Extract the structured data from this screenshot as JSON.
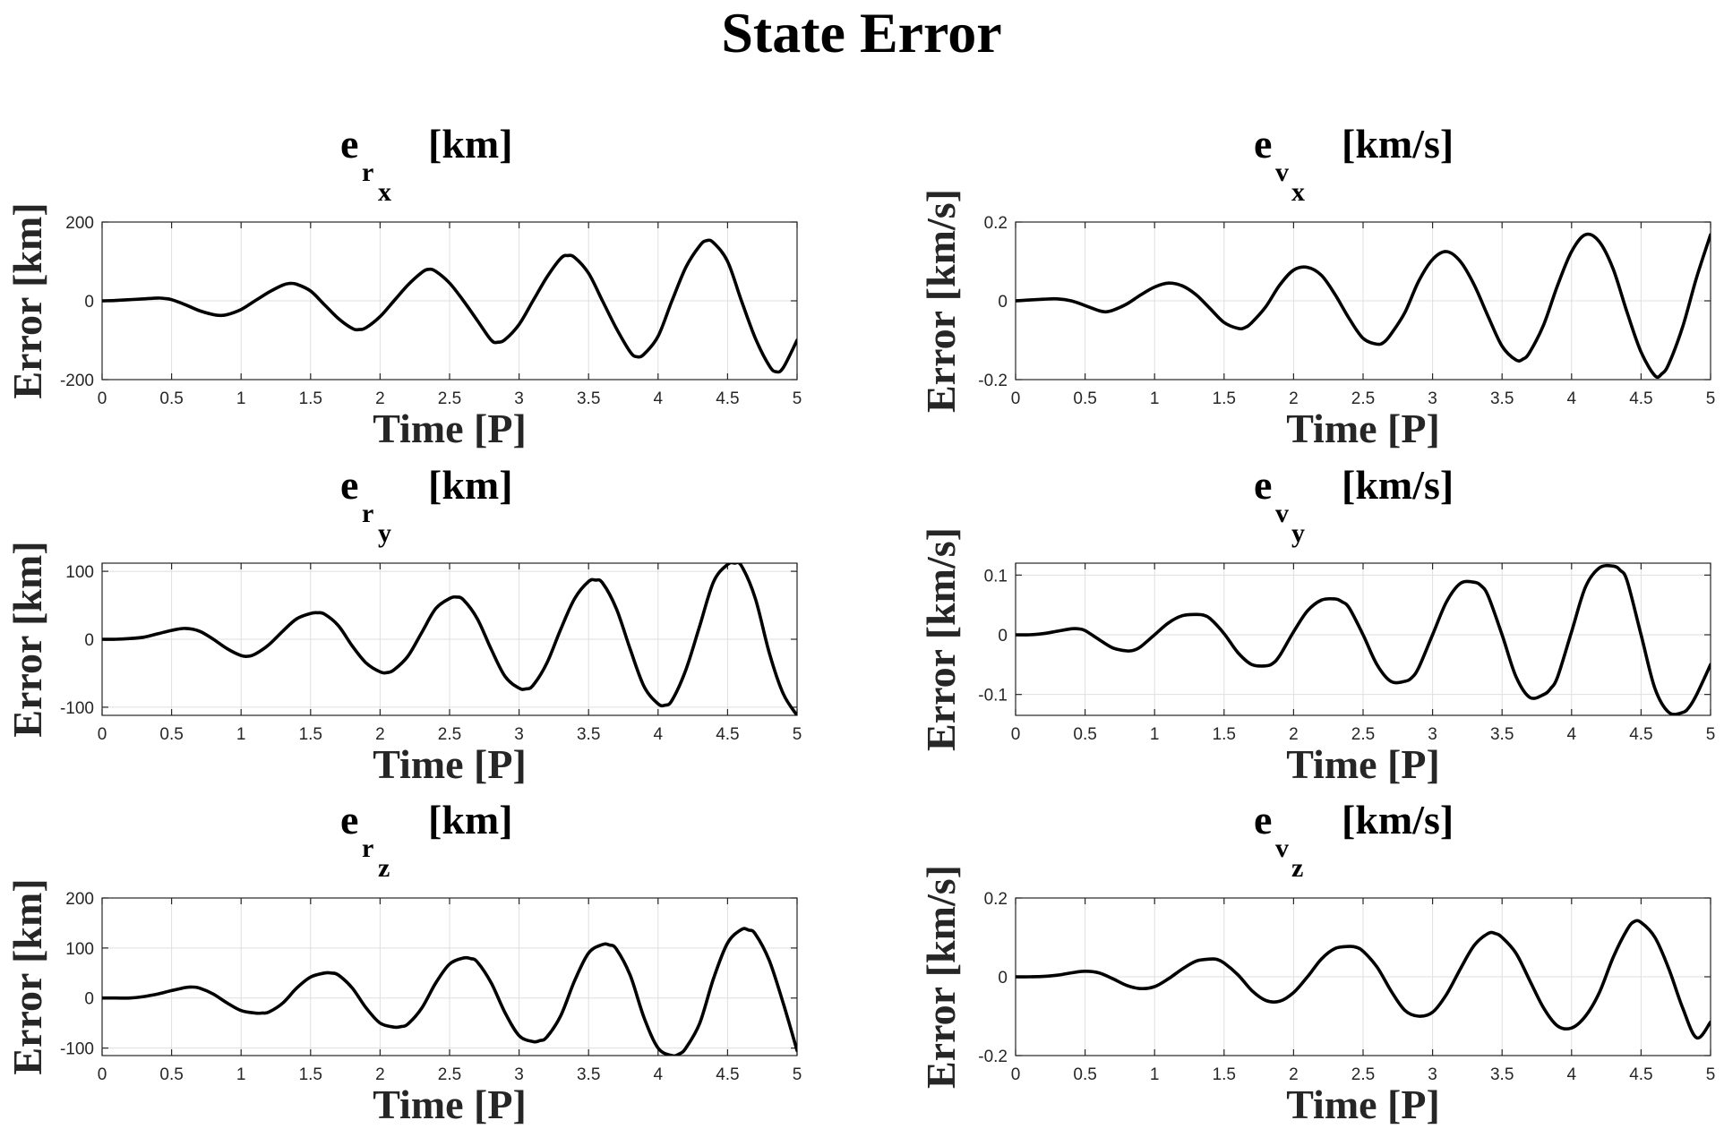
{
  "figure": {
    "title": "State Error"
  },
  "chart_data": [
    {
      "type": "line",
      "title": {
        "base": "e",
        "sub": "r",
        "subsub": "x",
        "unit": "[km]"
      },
      "xlabel": "Time [P]",
      "ylabel": "Error [km]",
      "xlim": [
        0,
        5
      ],
      "ylim": [
        -200,
        200
      ],
      "xticks": [
        0,
        0.5,
        1,
        1.5,
        2,
        2.5,
        3,
        3.5,
        4,
        4.5,
        5
      ],
      "xticklabels": [
        "0",
        "0.5",
        "1",
        "1.5",
        "2",
        "2.5",
        "3",
        "3.5",
        "4",
        "4.5",
        "5"
      ],
      "yticks": [
        -200,
        0,
        200
      ],
      "yticklabels": [
        "-200",
        "0",
        "200"
      ],
      "grid": true,
      "series": [
        {
          "color": "#000000",
          "x": [
            0,
            0.1,
            0.2,
            0.3,
            0.4,
            0.45,
            0.5,
            0.6,
            0.7,
            0.8,
            0.85,
            0.9,
            1.0,
            1.1,
            1.2,
            1.3,
            1.35,
            1.4,
            1.5,
            1.6,
            1.7,
            1.8,
            1.85,
            1.9,
            2.0,
            2.1,
            2.2,
            2.3,
            2.35,
            2.4,
            2.5,
            2.6,
            2.7,
            2.8,
            2.85,
            2.9,
            3.0,
            3.1,
            3.2,
            3.3,
            3.35,
            3.4,
            3.5,
            3.6,
            3.7,
            3.8,
            3.85,
            3.9,
            4.0,
            4.1,
            4.2,
            4.3,
            4.35,
            4.4,
            4.5,
            4.6,
            4.7,
            4.8,
            4.85,
            4.9,
            5.0
          ],
          "y": [
            0,
            1,
            3,
            5,
            7,
            6,
            3,
            -10,
            -25,
            -35,
            -37,
            -35,
            -22,
            0,
            22,
            40,
            44,
            42,
            25,
            -10,
            -45,
            -70,
            -73,
            -68,
            -40,
            0,
            40,
            72,
            80,
            75,
            45,
            0,
            -50,
            -100,
            -105,
            -98,
            -60,
            0,
            60,
            108,
            115,
            110,
            70,
            0,
            -70,
            -130,
            -142,
            -135,
            -90,
            0,
            85,
            140,
            153,
            147,
            100,
            0,
            -95,
            -165,
            -180,
            -170,
            -100
          ]
        }
      ]
    },
    {
      "type": "line",
      "title": {
        "base": "e",
        "sub": "v",
        "subsub": "x",
        "unit": "[km/s]"
      },
      "xlabel": "Time [P]",
      "ylabel": "Error [km/s]",
      "xlim": [
        0,
        5
      ],
      "ylim": [
        -0.2,
        0.2
      ],
      "xticks": [
        0,
        0.5,
        1,
        1.5,
        2,
        2.5,
        3,
        3.5,
        4,
        4.5,
        5
      ],
      "xticklabels": [
        "0",
        "0.5",
        "1",
        "1.5",
        "2",
        "2.5",
        "3",
        "3.5",
        "4",
        "4.5",
        "5"
      ],
      "yticks": [
        -0.2,
        0,
        0.2
      ],
      "yticklabels": [
        "-0.2",
        "0",
        "0.2"
      ],
      "grid": true,
      "series": [
        {
          "color": "#000000",
          "x": [
            0,
            0.1,
            0.2,
            0.3,
            0.4,
            0.5,
            0.6,
            0.65,
            0.7,
            0.8,
            0.9,
            1.0,
            1.1,
            1.2,
            1.3,
            1.4,
            1.5,
            1.6,
            1.65,
            1.7,
            1.8,
            1.9,
            2.0,
            2.1,
            2.2,
            2.3,
            2.4,
            2.5,
            2.6,
            2.65,
            2.7,
            2.8,
            2.9,
            3.0,
            3.1,
            3.2,
            3.3,
            3.4,
            3.5,
            3.6,
            3.65,
            3.7,
            3.8,
            3.9,
            4.0,
            4.1,
            4.2,
            4.3,
            4.4,
            4.5,
            4.6,
            4.65,
            4.7,
            4.8,
            4.9,
            5.0
          ],
          "y": [
            0,
            0.002,
            0.004,
            0.005,
            0.0,
            -0.012,
            -0.025,
            -0.028,
            -0.024,
            -0.008,
            0.015,
            0.035,
            0.045,
            0.038,
            0.015,
            -0.02,
            -0.055,
            -0.07,
            -0.068,
            -0.055,
            -0.015,
            0.04,
            0.078,
            0.085,
            0.065,
            0.015,
            -0.045,
            -0.095,
            -0.11,
            -0.105,
            -0.085,
            -0.03,
            0.05,
            0.105,
            0.125,
            0.1,
            0.04,
            -0.04,
            -0.115,
            -0.15,
            -0.148,
            -0.13,
            -0.06,
            0.04,
            0.125,
            0.168,
            0.15,
            0.08,
            -0.03,
            -0.13,
            -0.19,
            -0.185,
            -0.16,
            -0.065,
            0.06,
            0.168
          ]
        }
      ]
    },
    {
      "type": "line",
      "title": {
        "base": "e",
        "sub": "r",
        "subsub": "y",
        "unit": "[km]"
      },
      "xlabel": "Time [P]",
      "ylabel": "Error [km]",
      "xlim": [
        0,
        5
      ],
      "ylim": [
        -112,
        112
      ],
      "xticks": [
        0,
        0.5,
        1,
        1.5,
        2,
        2.5,
        3,
        3.5,
        4,
        4.5,
        5
      ],
      "xticklabels": [
        "0",
        "0.5",
        "1",
        "1.5",
        "2",
        "2.5",
        "3",
        "3.5",
        "4",
        "4.5",
        "5"
      ],
      "yticks": [
        -100,
        0,
        100
      ],
      "yticklabels": [
        "-100",
        "0",
        "100"
      ],
      "grid": true,
      "series": [
        {
          "color": "#000000",
          "x": [
            0,
            0.1,
            0.2,
            0.3,
            0.4,
            0.5,
            0.6,
            0.7,
            0.8,
            0.9,
            1.0,
            1.05,
            1.1,
            1.2,
            1.3,
            1.4,
            1.5,
            1.55,
            1.6,
            1.7,
            1.8,
            1.9,
            2.0,
            2.05,
            2.1,
            2.2,
            2.3,
            2.4,
            2.5,
            2.55,
            2.6,
            2.7,
            2.8,
            2.9,
            3.0,
            3.05,
            3.1,
            3.2,
            3.3,
            3.4,
            3.5,
            3.55,
            3.6,
            3.7,
            3.8,
            3.9,
            4.0,
            4.05,
            4.1,
            4.2,
            4.3,
            4.4,
            4.5,
            4.55,
            4.6,
            4.7,
            4.8,
            4.9,
            5.0
          ],
          "y": [
            0,
            0,
            1,
            3,
            8,
            13,
            16,
            12,
            0,
            -14,
            -24,
            -25,
            -22,
            -8,
            12,
            30,
            38,
            39,
            37,
            20,
            -10,
            -35,
            -48,
            -49,
            -45,
            -25,
            10,
            45,
            60,
            62,
            58,
            30,
            -15,
            -55,
            -72,
            -73,
            -68,
            -35,
            15,
            60,
            85,
            87,
            83,
            45,
            -15,
            -70,
            -95,
            -97,
            -90,
            -45,
            20,
            85,
            110,
            112,
            108,
            60,
            -20,
            -80,
            -112
          ]
        }
      ]
    },
    {
      "type": "line",
      "title": {
        "base": "e",
        "sub": "v",
        "subsub": "y",
        "unit": "[km/s]"
      },
      "xlabel": "Time [P]",
      "ylabel": "Error [km/s]",
      "xlim": [
        0,
        5
      ],
      "ylim": [
        -0.135,
        0.12
      ],
      "xticks": [
        0,
        0.5,
        1,
        1.5,
        2,
        2.5,
        3,
        3.5,
        4,
        4.5,
        5
      ],
      "xticklabels": [
        "0",
        "0.5",
        "1",
        "1.5",
        "2",
        "2.5",
        "3",
        "3.5",
        "4",
        "4.5",
        "5"
      ],
      "yticks": [
        -0.1,
        0,
        0.1
      ],
      "yticklabels": [
        "-0.1",
        "0",
        "0.1"
      ],
      "grid": true,
      "series": [
        {
          "color": "#000000",
          "x": [
            0,
            0.1,
            0.2,
            0.3,
            0.4,
            0.45,
            0.5,
            0.6,
            0.7,
            0.8,
            0.85,
            0.9,
            1.0,
            1.1,
            1.2,
            1.3,
            1.35,
            1.4,
            1.5,
            1.6,
            1.7,
            1.8,
            1.85,
            1.9,
            2.0,
            2.1,
            2.2,
            2.3,
            2.35,
            2.4,
            2.5,
            2.6,
            2.7,
            2.8,
            2.85,
            2.9,
            3.0,
            3.1,
            3.2,
            3.3,
            3.35,
            3.4,
            3.5,
            3.6,
            3.7,
            3.8,
            3.85,
            3.9,
            4.0,
            4.1,
            4.2,
            4.3,
            4.35,
            4.4,
            4.5,
            4.6,
            4.7,
            4.8,
            4.85,
            4.9,
            5.0
          ],
          "y": [
            0,
            0,
            0.002,
            0.006,
            0.01,
            0.01,
            0.007,
            -0.008,
            -0.022,
            -0.027,
            -0.026,
            -0.02,
            0.0,
            0.02,
            0.032,
            0.034,
            0.033,
            0.027,
            0.002,
            -0.03,
            -0.05,
            -0.052,
            -0.048,
            -0.035,
            0.005,
            0.04,
            0.058,
            0.06,
            0.055,
            0.045,
            0.0,
            -0.05,
            -0.078,
            -0.078,
            -0.072,
            -0.055,
            0.0,
            0.055,
            0.086,
            0.088,
            0.082,
            0.065,
            0.0,
            -0.07,
            -0.105,
            -0.1,
            -0.09,
            -0.07,
            0.005,
            0.08,
            0.112,
            0.115,
            0.108,
            0.09,
            0.0,
            -0.09,
            -0.13,
            -0.13,
            -0.12,
            -0.1,
            -0.05
          ]
        }
      ]
    },
    {
      "type": "line",
      "title": {
        "base": "e",
        "sub": "r",
        "subsub": "z",
        "unit": "[km]"
      },
      "xlabel": "Time [P]",
      "ylabel": "Error [km]",
      "xlim": [
        0,
        5
      ],
      "ylim": [
        -115,
        200
      ],
      "xticks": [
        0,
        0.5,
        1,
        1.5,
        2,
        2.5,
        3,
        3.5,
        4,
        4.5,
        5
      ],
      "xticklabels": [
        "0",
        "0.5",
        "1",
        "1.5",
        "2",
        "2.5",
        "3",
        "3.5",
        "4",
        "4.5",
        "5"
      ],
      "yticks": [
        -100,
        0,
        100,
        200
      ],
      "yticklabels": [
        "-100",
        "0",
        "100",
        "200"
      ],
      "grid": true,
      "series": [
        {
          "color": "#000000",
          "x": [
            0,
            0.1,
            0.2,
            0.3,
            0.4,
            0.5,
            0.6,
            0.65,
            0.7,
            0.8,
            0.9,
            1.0,
            1.1,
            1.15,
            1.2,
            1.3,
            1.4,
            1.5,
            1.6,
            1.65,
            1.7,
            1.8,
            1.9,
            2.0,
            2.1,
            2.15,
            2.2,
            2.3,
            2.4,
            2.5,
            2.6,
            2.65,
            2.7,
            2.8,
            2.9,
            3.0,
            3.1,
            3.15,
            3.2,
            3.3,
            3.4,
            3.5,
            3.6,
            3.65,
            3.7,
            3.8,
            3.9,
            4.0,
            4.1,
            4.15,
            4.2,
            4.3,
            4.4,
            4.5,
            4.6,
            4.65,
            4.7,
            4.8,
            4.9,
            5.0
          ],
          "y": [
            0,
            0,
            0,
            3,
            8,
            15,
            21,
            22,
            20,
            8,
            -10,
            -25,
            -30,
            -30,
            -28,
            -10,
            20,
            42,
            50,
            50,
            46,
            20,
            -20,
            -50,
            -58,
            -57,
            -52,
            -20,
            30,
            68,
            80,
            79,
            72,
            30,
            -30,
            -75,
            -87,
            -85,
            -78,
            -35,
            35,
            90,
            107,
            106,
            98,
            45,
            -40,
            -100,
            -115,
            -112,
            -100,
            -50,
            40,
            110,
            137,
            136,
            128,
            75,
            -10,
            -105
          ]
        }
      ]
    },
    {
      "type": "line",
      "title": {
        "base": "e",
        "sub": "v",
        "subsub": "z",
        "unit": "[km/s]"
      },
      "xlabel": "Time [P]",
      "ylabel": "Error [km/s]",
      "xlim": [
        0,
        5
      ],
      "ylim": [
        -0.2,
        0.2
      ],
      "xticks": [
        0,
        0.5,
        1,
        1.5,
        2,
        2.5,
        3,
        3.5,
        4,
        4.5,
        5
      ],
      "xticklabels": [
        "0",
        "0.5",
        "1",
        "1.5",
        "2",
        "2.5",
        "3",
        "3.5",
        "4",
        "4.5",
        "5"
      ],
      "yticks": [
        -0.2,
        0,
        0.2
      ],
      "yticklabels": [
        "-0.2",
        "0",
        "0.2"
      ],
      "grid": true,
      "series": [
        {
          "color": "#000000",
          "x": [
            0,
            0.1,
            0.2,
            0.3,
            0.4,
            0.5,
            0.6,
            0.7,
            0.8,
            0.9,
            1.0,
            1.1,
            1.2,
            1.3,
            1.4,
            1.45,
            1.5,
            1.6,
            1.7,
            1.8,
            1.9,
            2.0,
            2.1,
            2.2,
            2.3,
            2.4,
            2.45,
            2.5,
            2.6,
            2.7,
            2.8,
            2.9,
            3.0,
            3.1,
            3.2,
            3.3,
            3.4,
            3.45,
            3.5,
            3.6,
            3.7,
            3.8,
            3.9,
            4.0,
            4.1,
            4.2,
            4.3,
            4.4,
            4.45,
            4.5,
            4.6,
            4.7,
            4.8,
            4.9,
            5.0
          ],
          "y": [
            0,
            0,
            0.001,
            0.004,
            0.01,
            0.014,
            0.01,
            -0.005,
            -0.022,
            -0.03,
            -0.025,
            -0.005,
            0.02,
            0.04,
            0.045,
            0.044,
            0.035,
            0.005,
            -0.035,
            -0.06,
            -0.062,
            -0.04,
            0.0,
            0.045,
            0.072,
            0.077,
            0.075,
            0.065,
            0.025,
            -0.035,
            -0.085,
            -0.1,
            -0.09,
            -0.045,
            0.02,
            0.08,
            0.11,
            0.11,
            0.1,
            0.06,
            -0.01,
            -0.08,
            -0.125,
            -0.13,
            -0.1,
            -0.04,
            0.05,
            0.12,
            0.14,
            0.138,
            0.1,
            0.02,
            -0.08,
            -0.155,
            -0.115
          ]
        }
      ]
    }
  ]
}
